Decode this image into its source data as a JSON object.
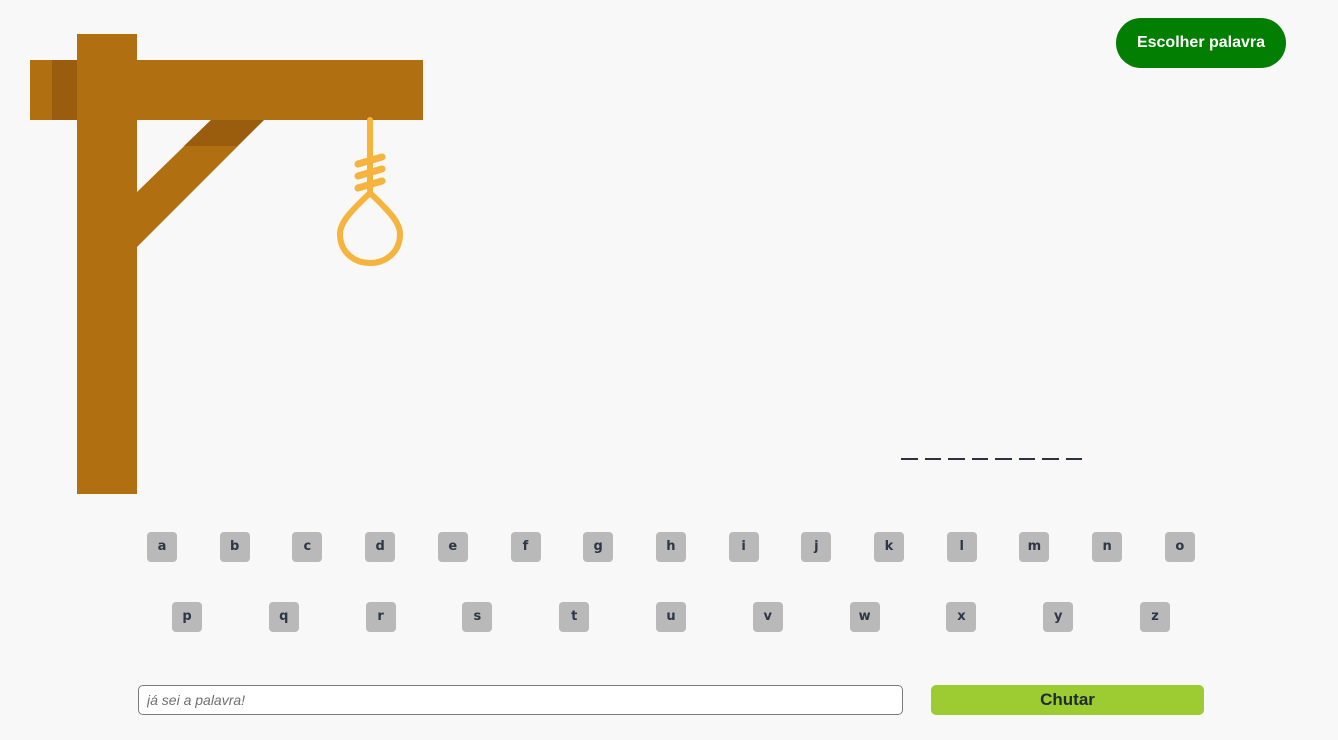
{
  "header": {
    "choose_word_label": "Escolher palavra"
  },
  "gallows": {
    "image": "gallows-with-noose",
    "wood_color": "#b07012",
    "wood_shade_color": "#9a5d0e",
    "rope_color": "#f6b33d"
  },
  "word": {
    "slots": [
      "",
      "",
      "",
      "",
      "",
      "",
      "",
      ""
    ]
  },
  "keyboard": {
    "row1": [
      "a",
      "b",
      "c",
      "d",
      "e",
      "f",
      "g",
      "h",
      "i",
      "j",
      "k",
      "l",
      "m",
      "n",
      "o"
    ],
    "row2": [
      "p",
      "q",
      "r",
      "s",
      "t",
      "u",
      "v",
      "w",
      "x",
      "y",
      "z"
    ]
  },
  "guess": {
    "placeholder": "já sei a palavra!",
    "button_label": "Chutar"
  },
  "colors": {
    "choose_button": "#027e02",
    "key_background": "#b9b9b9",
    "guess_button": "#9ccb32"
  }
}
